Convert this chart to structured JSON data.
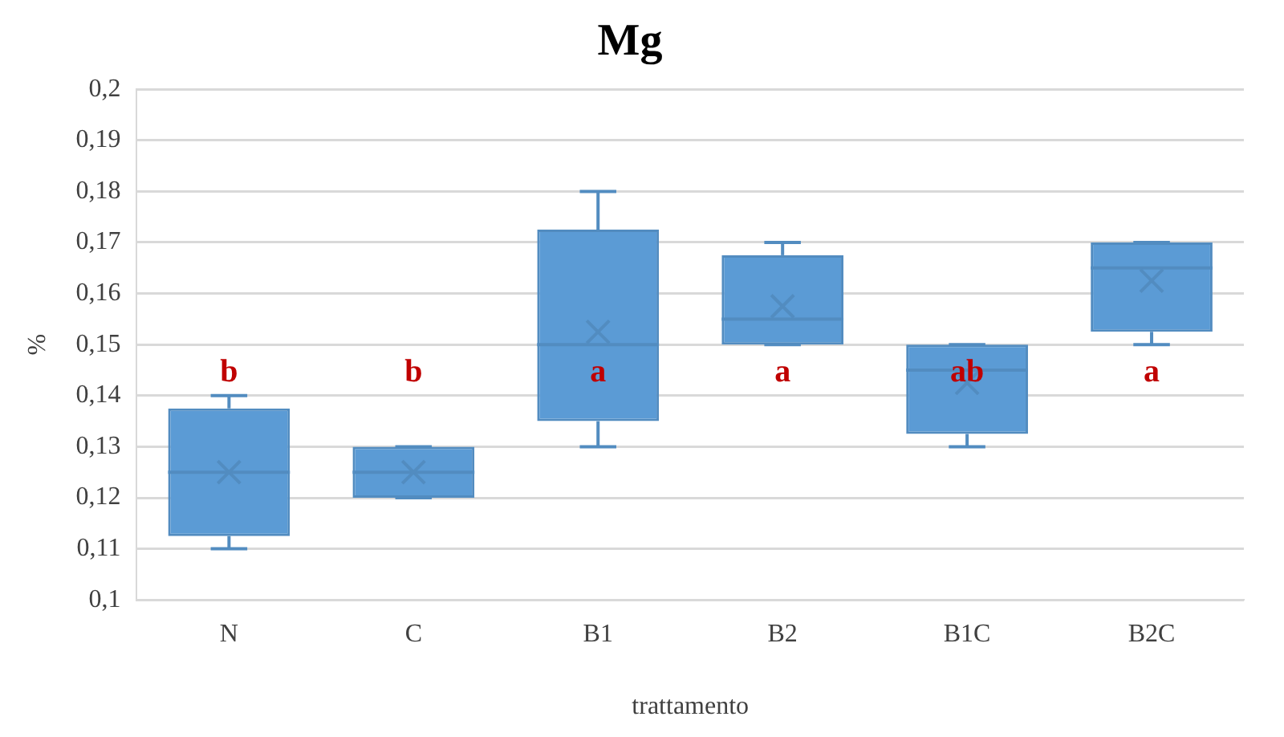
{
  "chart_data": {
    "type": "box",
    "title": "Mg",
    "xlabel": "trattamento",
    "ylabel": "%",
    "categories": [
      "N",
      "C",
      "B1",
      "B2",
      "B1C",
      "B2C"
    ],
    "color": "#5b9bd5",
    "boxes": [
      {
        "low": 0.11,
        "q1": 0.1125,
        "median": 0.125,
        "q3": 0.1375,
        "high": 0.14,
        "mean": 0.125
      },
      {
        "low": 0.12,
        "q1": 0.12,
        "median": 0.125,
        "q3": 0.13,
        "high": 0.13,
        "mean": 0.125
      },
      {
        "low": 0.13,
        "q1": 0.135,
        "median": 0.15,
        "q3": 0.1725,
        "high": 0.18,
        "mean": 0.1525
      },
      {
        "low": 0.15,
        "q1": 0.15,
        "median": 0.155,
        "q3": 0.1675,
        "high": 0.17,
        "mean": 0.1575
      },
      {
        "low": 0.13,
        "q1": 0.1325,
        "median": 0.145,
        "q3": 0.15,
        "high": 0.15,
        "mean": 0.1425
      },
      {
        "low": 0.15,
        "q1": 0.1525,
        "median": 0.165,
        "q3": 0.17,
        "high": 0.17,
        "mean": 0.1625
      }
    ],
    "ylim": [
      0.1,
      0.2
    ],
    "yticks": [
      {
        "value": 0.1,
        "label": "0,1"
      },
      {
        "value": 0.11,
        "label": "0,11"
      },
      {
        "value": 0.12,
        "label": "0,12"
      },
      {
        "value": 0.13,
        "label": "0,13"
      },
      {
        "value": 0.14,
        "label": "0,14"
      },
      {
        "value": 0.15,
        "label": "0,15"
      },
      {
        "value": 0.16,
        "label": "0,16"
      },
      {
        "value": 0.17,
        "label": "0,17"
      },
      {
        "value": 0.18,
        "label": "0,18"
      },
      {
        "value": 0.19,
        "label": "0,19"
      },
      {
        "value": 0.2,
        "label": "0,2"
      }
    ],
    "grid": "y",
    "legend": false,
    "annotations": [
      "b",
      "b",
      "a",
      "a",
      "ab",
      "a"
    ]
  }
}
